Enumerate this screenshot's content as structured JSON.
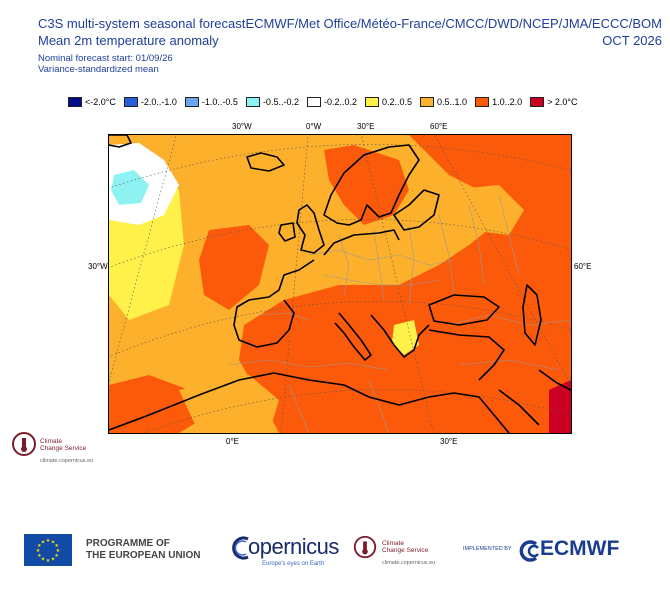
{
  "header": {
    "title_line1": "C3S multi-system seasonal forecast",
    "title_line2": "Mean 2m temperature anomaly",
    "start_line": "Nominal forecast start: 01/09/26",
    "method_line": "Variance-standardized mean",
    "providers": "ECMWF/Met Office/Météo-France/CMCC/DWD/NCEP/JMA/ECCC/BOM",
    "valid_month": "OCT 2026"
  },
  "legend": [
    {
      "label": "<-2.0°C",
      "color": "#000d8a"
    },
    {
      "label": "-2.0..-1.0",
      "color": "#2a5ce0"
    },
    {
      "label": "-1.0..-0.5",
      "color": "#6fa4f0"
    },
    {
      "label": "-0.5..-0.2",
      "color": "#8ef2f2"
    },
    {
      "label": "-0.2..0.2",
      "color": "#ffffff"
    },
    {
      "label": "0.2..0.5",
      "color": "#fff04a"
    },
    {
      "label": "0.5..1.0",
      "color": "#fdb02b"
    },
    {
      "label": "1.0..2.0",
      "color": "#fa5a0a"
    },
    {
      "label": "> 2.0°C",
      "color": "#cc0022"
    }
  ],
  "map": {
    "top_labels": [
      "30°W",
      "0°W",
      "30°E",
      "60°E"
    ],
    "bottom_labels": [
      "0°E",
      "30°E"
    ],
    "left_label": "30°W",
    "right_label": "60°E",
    "colors": {
      "ocean_base": "#fdb02b",
      "warm": "#fa5a0a",
      "hot": "#cc0022",
      "mild": "#fff04a",
      "neutral": "#ffffff",
      "cool": "#8ef2f2",
      "coast": "#000000",
      "border": "#9a9a9a",
      "grid": "#555555"
    }
  },
  "c3s_small": {
    "line1": "Climate",
    "line2": "Change Service",
    "url": "climate.copernicus.eu"
  },
  "footer": {
    "programme_line1": "PROGRAMME OF",
    "programme_line2": "THE EUROPEAN UNION",
    "copernicus": "opernicus",
    "copernicus_sub": "Europe's eyes on Earth",
    "c3s_line1": "Climate",
    "c3s_line2": "Change Service",
    "c3s_url": "climate.copernicus.eu",
    "implemented_by": "IMPLEMENTED BY",
    "ecmwf": "ECMWF"
  }
}
